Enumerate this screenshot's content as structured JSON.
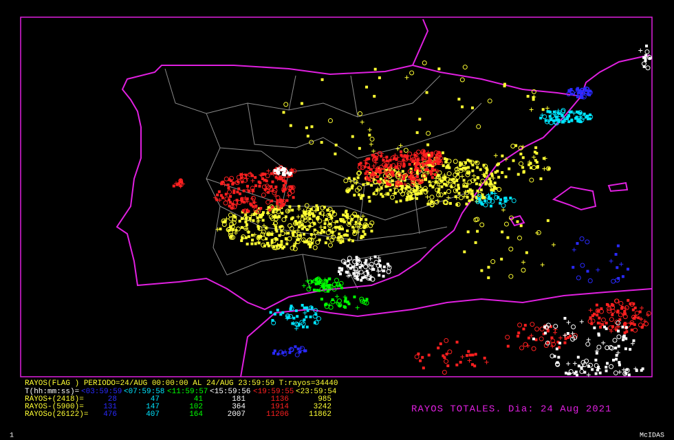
{
  "header": {
    "line": "RAYOS(FLAG ) PERIODO=24/AUG 00:00:00 AL 24/AUG 23:59:59  T:rayos=34440"
  },
  "table": {
    "time_label": "T(hh:mm:ss)=",
    "periods": [
      "<03:59:59",
      "<07:59:58",
      "<11:59:57",
      "<15:59:56",
      "<19:59:55",
      "<23:59:54"
    ],
    "colors": [
      "#2a2aff",
      "#00e5ff",
      "#00ff00",
      "#ffffff",
      "#ff2020",
      "#ffff33"
    ],
    "rows": [
      {
        "label": "RAYOS+(2418)=",
        "values": [
          28,
          47,
          41,
          181,
          1136,
          985
        ]
      },
      {
        "label": "RAYOS-(5900)=",
        "values": [
          131,
          147,
          102,
          364,
          1914,
          3242
        ]
      },
      {
        "label": "RAYOSo(26122)=",
        "values": [
          476,
          407,
          164,
          2007,
          11206,
          11862
        ]
      }
    ]
  },
  "title": "RAYOS TOTALES. Dia: 24 Aug 2021",
  "footer": {
    "left": "1",
    "right": "McIDAS"
  }
}
